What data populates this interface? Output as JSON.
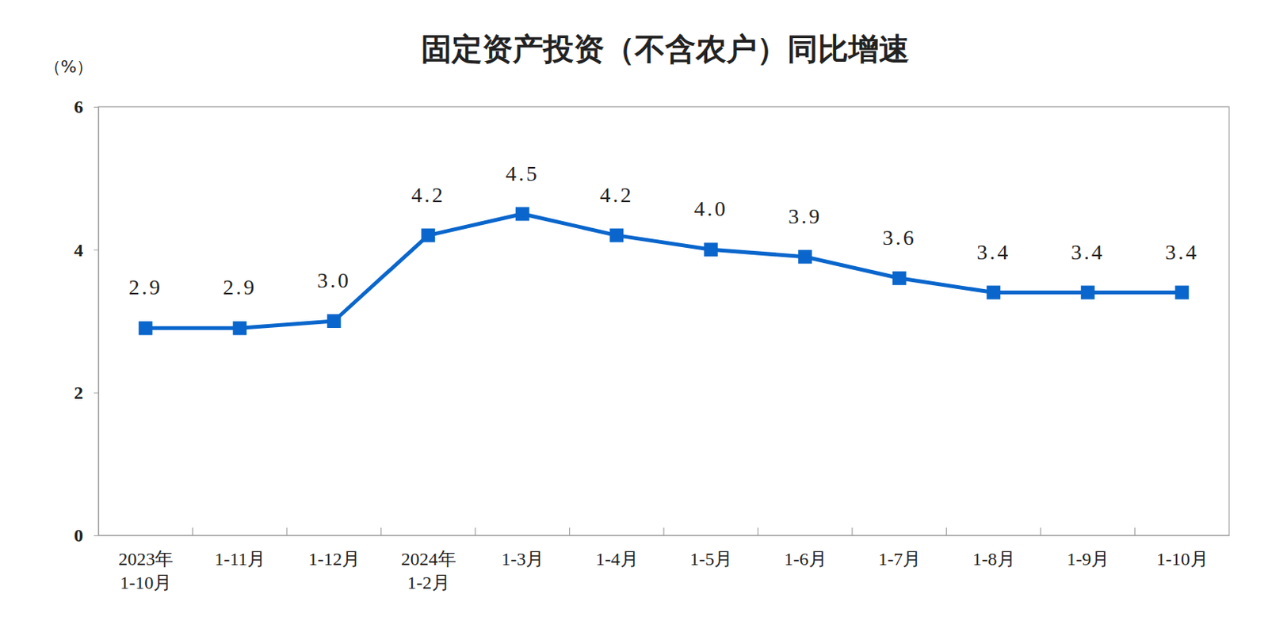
{
  "chart_data": {
    "type": "line",
    "title": "固定资产投资（不含农户）同比增速",
    "y_label": "（%）",
    "categories": [
      "2023年\n1-10月",
      "1-11月",
      "1-12月",
      "2024年\n1-2月",
      "1-3月",
      "1-4月",
      "1-5月",
      "1-6月",
      "1-7月",
      "1-8月",
      "1-9月",
      "1-10月"
    ],
    "values": [
      2.9,
      2.9,
      3.0,
      4.2,
      4.5,
      4.2,
      4.0,
      3.9,
      3.6,
      3.4,
      3.4,
      3.4
    ],
    "value_labels": [
      "2.9",
      "2.9",
      "3.0",
      "4.2",
      "4.5",
      "4.2",
      "4.0",
      "3.9",
      "3.6",
      "3.4",
      "3.4",
      "3.4"
    ],
    "color": "#0a66cc",
    "marker": "square",
    "ylim": [
      0,
      6
    ],
    "yticks": [
      0,
      2,
      4,
      6
    ],
    "grid": false,
    "data_labels": true
  }
}
